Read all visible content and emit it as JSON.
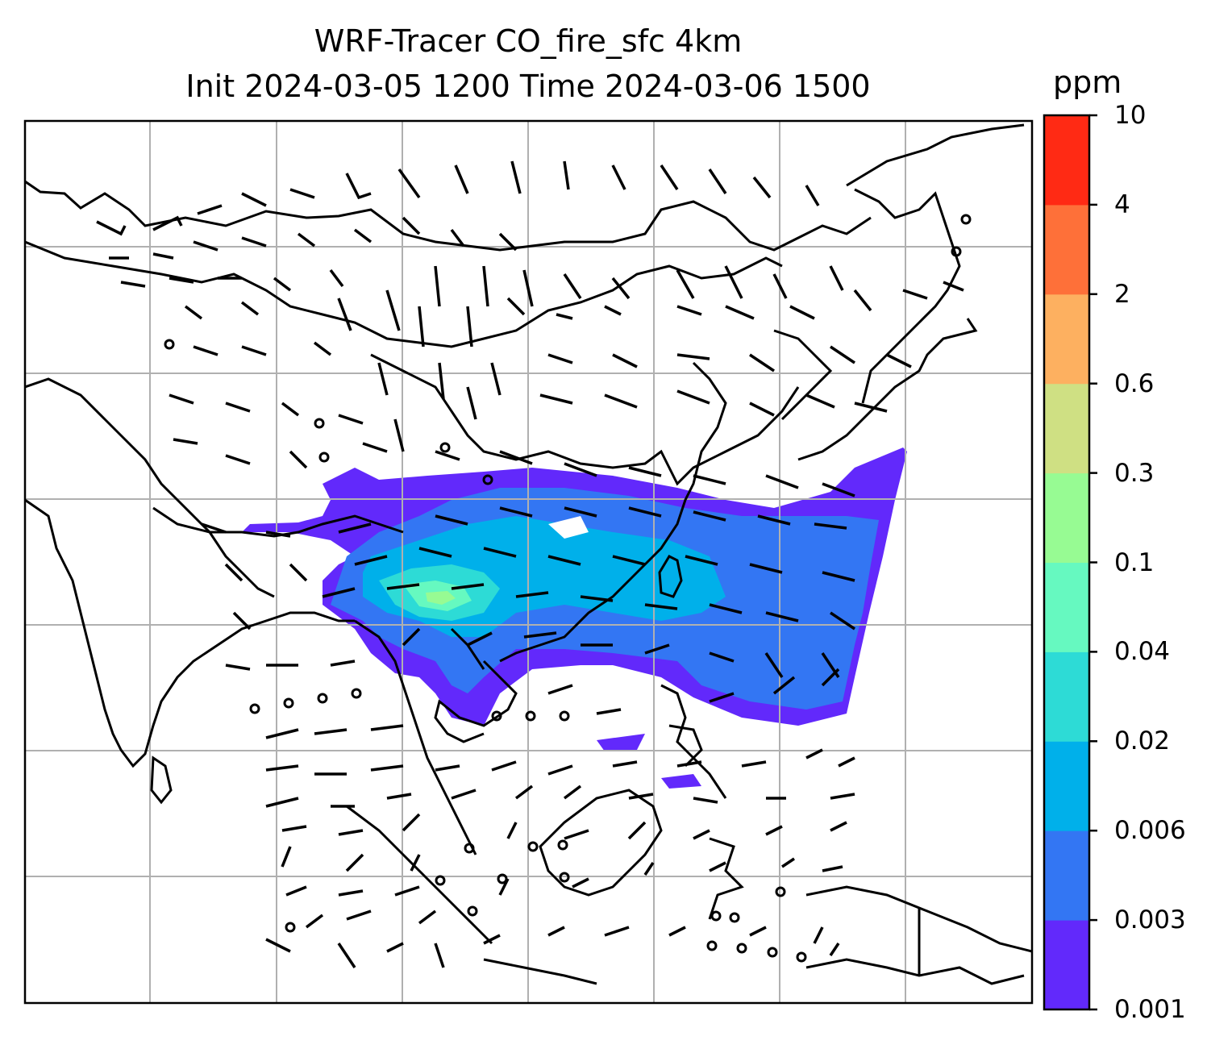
{
  "title": {
    "line1": "WRF-Tracer CO_fire_sfc 4km",
    "line2": "Init 2024-03-05 1200 Time 2024-03-06 1500"
  },
  "colorbar": {
    "unit": "ppm",
    "levels": [
      "0.001",
      "0.003",
      "0.006",
      "0.02",
      "0.04",
      "0.1",
      "0.3",
      "0.6",
      "2",
      "4",
      "10"
    ],
    "colors": [
      "#6229fb",
      "#3376f3",
      "#00b0ea",
      "#2ddbd6",
      "#66f9c0",
      "#97fb93",
      "#cfe083",
      "#fdb060",
      "#fe7039",
      "#ff2a14"
    ]
  },
  "map": {
    "gridlines": true,
    "frame_color": "#000000",
    "grid_color": "#b0b0b0"
  }
}
